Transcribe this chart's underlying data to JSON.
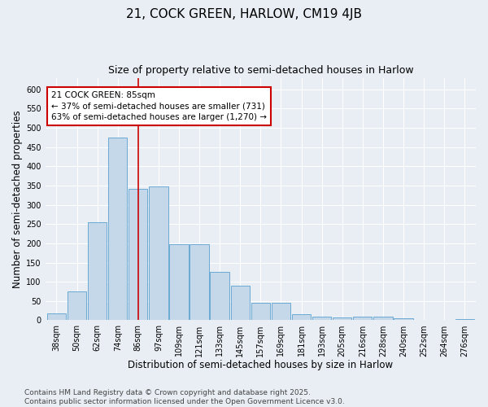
{
  "title": "21, COCK GREEN, HARLOW, CM19 4JB",
  "subtitle": "Size of property relative to semi-detached houses in Harlow",
  "xlabel": "Distribution of semi-detached houses by size in Harlow",
  "ylabel": "Number of semi-detached properties",
  "categories": [
    "38sqm",
    "50sqm",
    "62sqm",
    "74sqm",
    "86sqm",
    "97sqm",
    "109sqm",
    "121sqm",
    "133sqm",
    "145sqm",
    "157sqm",
    "169sqm",
    "181sqm",
    "193sqm",
    "205sqm",
    "216sqm",
    "228sqm",
    "240sqm",
    "252sqm",
    "264sqm",
    "276sqm"
  ],
  "values": [
    18,
    75,
    255,
    475,
    342,
    347,
    198,
    197,
    126,
    89,
    46,
    46,
    15,
    9,
    7,
    9,
    10,
    5,
    1,
    1,
    4
  ],
  "bar_color": "#c5d8ea",
  "bar_edge_color": "#6aaad4",
  "highlight_index": 4,
  "highlight_line_color": "#cc0000",
  "annotation_text": "21 COCK GREEN: 85sqm\n← 37% of semi-detached houses are smaller (731)\n63% of semi-detached houses are larger (1,270) →",
  "annotation_box_color": "#ffffff",
  "annotation_box_edge": "#cc0000",
  "ylim": [
    0,
    630
  ],
  "yticks": [
    0,
    50,
    100,
    150,
    200,
    250,
    300,
    350,
    400,
    450,
    500,
    550,
    600
  ],
  "footer": "Contains HM Land Registry data © Crown copyright and database right 2025.\nContains public sector information licensed under the Open Government Licence v3.0.",
  "bg_color": "#e8eef4",
  "grid_color": "#ffffff",
  "title_fontsize": 11,
  "subtitle_fontsize": 9,
  "axis_label_fontsize": 8.5,
  "tick_fontsize": 7,
  "footer_fontsize": 6.5,
  "annotation_fontsize": 7.5
}
